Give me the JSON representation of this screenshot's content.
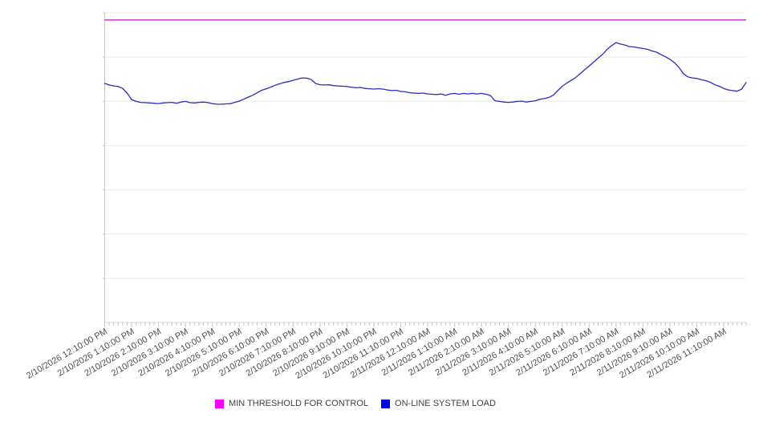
{
  "chart_data": {
    "type": "line",
    "title": "",
    "xlabel": "",
    "ylabel": "",
    "y_axis_tick_labels_visible": false,
    "grid": "horizontal",
    "horizontal_gridline_count": 8,
    "legend_position": "bottom",
    "ylim": [
      0,
      100
    ],
    "x_tick_labels": [
      "2/10/2026 12:10:00 PM",
      "2/10/2026 1:10:00 PM",
      "2/10/2026 2:10:00 PM",
      "2/10/2026 3:10:00 PM",
      "2/10/2026 4:10:00 PM",
      "2/10/2026 5:10:00 PM",
      "2/10/2026 6:10:00 PM",
      "2/10/2026 7:10:00 PM",
      "2/10/2026 8:10:00 PM",
      "2/10/2026 9:10:00 PM",
      "2/10/2026 10:10:00 PM",
      "2/10/2026 11:10:00 PM",
      "2/11/2026 12:10:00 AM",
      "2/11/2026 1:10:00 AM",
      "2/11/2026 2:10:00 AM",
      "2/11/2026 3:10:00 AM",
      "2/11/2026 4:10:00 AM",
      "2/11/2026 5:10:00 AM",
      "2/11/2026 6:10:00 AM",
      "2/11/2026 7:10:00 AM",
      "2/11/2026 8:10:00 AM",
      "2/11/2026 9:10:00 AM",
      "2/11/2026 10:10:00 AM",
      "2/11/2026 11:10:00 AM"
    ],
    "points_per_x_tick": 6,
    "x_interval_minutes": 10,
    "series": [
      {
        "name": "MIN THRESHOLD FOR CONTROL",
        "type": "threshold-line",
        "color": "#c937cd",
        "value": 97.7
      },
      {
        "name": "ON-LINE SYSTEM LOAD",
        "type": "line",
        "color": "#2b2bbd",
        "values": [
          77.2,
          76.7,
          76.4,
          76.2,
          75.6,
          74.1,
          72.0,
          71.4,
          71.1,
          71.0,
          70.9,
          70.8,
          70.7,
          70.9,
          71.0,
          71.1,
          70.8,
          71.2,
          71.4,
          71.0,
          70.9,
          71.1,
          71.2,
          71.0,
          70.7,
          70.5,
          70.5,
          70.6,
          70.7,
          71.1,
          71.5,
          72.1,
          72.8,
          73.4,
          74.2,
          75.0,
          75.5,
          76.0,
          76.6,
          77.1,
          77.5,
          77.8,
          78.2,
          78.6,
          79.0,
          78.9,
          78.5,
          77.2,
          76.8,
          76.7,
          76.8,
          76.5,
          76.4,
          76.3,
          76.2,
          76.0,
          75.8,
          75.9,
          75.6,
          75.5,
          75.4,
          75.5,
          75.4,
          75.1,
          74.9,
          75.0,
          74.6,
          74.5,
          74.2,
          74.1,
          74.0,
          74.1,
          73.8,
          73.7,
          73.6,
          73.8,
          73.4,
          73.8,
          74.0,
          73.7,
          74.0,
          73.8,
          74.0,
          73.8,
          74.0,
          73.7,
          73.3,
          71.6,
          71.4,
          71.2,
          71.1,
          71.2,
          71.4,
          71.5,
          71.2,
          71.4,
          71.6,
          72.1,
          72.3,
          72.7,
          73.4,
          74.9,
          76.3,
          77.3,
          78.2,
          79.1,
          80.4,
          81.6,
          82.8,
          84.1,
          85.4,
          86.6,
          88.2,
          89.4,
          90.4,
          89.9,
          89.6,
          89.1,
          89.0,
          88.7,
          88.5,
          88.2,
          87.7,
          87.3,
          86.5,
          85.8,
          85.0,
          83.9,
          82.4,
          80.4,
          79.3,
          79.0,
          78.8,
          78.4,
          78.1,
          77.6,
          76.8,
          76.3,
          75.6,
          75.1,
          74.9,
          74.7,
          75.4,
          77.5
        ]
      }
    ]
  },
  "legend": {
    "items": [
      {
        "label": "MIN THRESHOLD FOR CONTROL",
        "color": "#ff00ff"
      },
      {
        "label": "ON-LINE SYSTEM LOAD",
        "color": "#0000ee"
      }
    ]
  },
  "colors": {
    "gridline": "#ebebeb",
    "axis_line": "#c6c6c6",
    "tick": "#c9c9c9",
    "x_axis_line": "#d9d9d9",
    "tick_label": "#4d4d4d"
  }
}
